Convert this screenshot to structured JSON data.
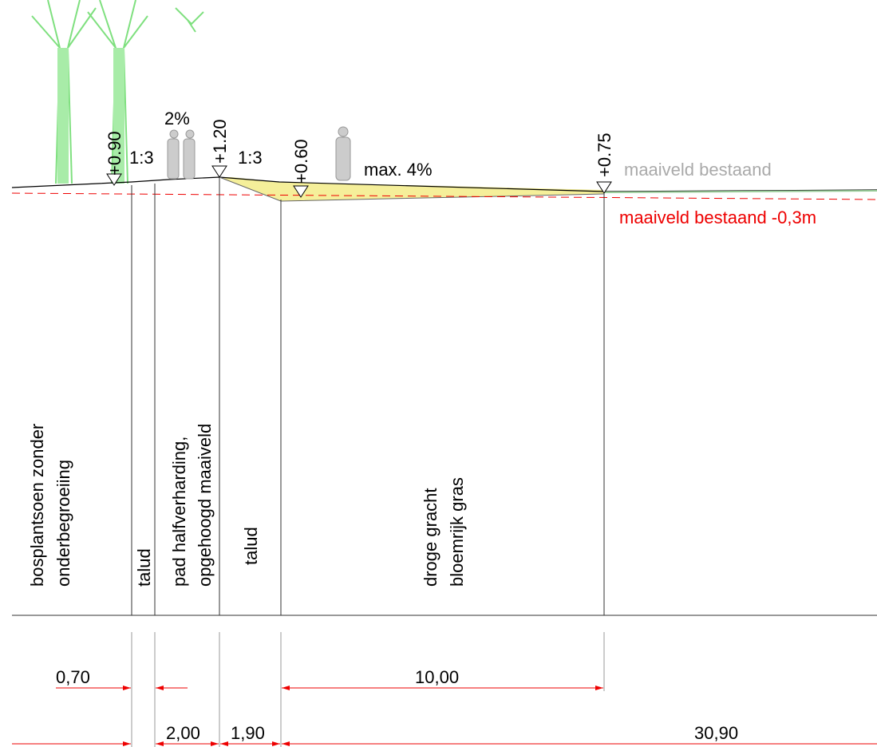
{
  "annotations": {
    "slope_path": "2%",
    "slope_left": "1:3",
    "slope_right": "1:3",
    "max_slope": "max. 4%"
  },
  "levels": [
    "+0.90",
    "+1.20",
    "+0.60",
    "+0.75"
  ],
  "ground_labels": {
    "existing": "maaiveld bestaand",
    "lowered": "maaiveld bestaand -0,3m"
  },
  "zones": [
    [
      "bosplantsoen zonder",
      "onderbegroeiing"
    ],
    [
      "talud"
    ],
    [
      "pad halfverharding,",
      "opgehoogd maaiveld"
    ],
    [
      "talud"
    ],
    [
      "droge gracht",
      "bloemrijk gras"
    ]
  ],
  "dimensions": [
    "0,70",
    "10,00",
    "2,00",
    "1,90",
    "30,90"
  ]
}
